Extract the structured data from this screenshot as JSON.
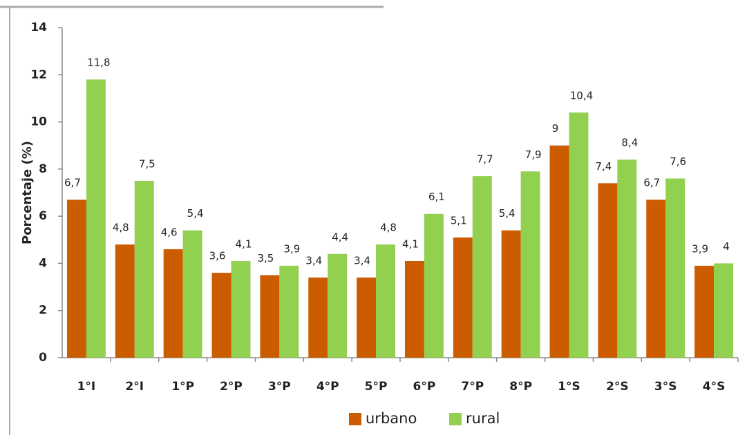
{
  "chart_data": {
    "type": "bar",
    "y_label": "Porcentaje (%)",
    "categories": [
      "1°I",
      "2°I",
      "1°P",
      "2°P",
      "3°P",
      "4°P",
      "5°P",
      "6°P",
      "7°P",
      "8°P",
      "1°S",
      "2°S",
      "3°S",
      "4°S"
    ],
    "series": [
      {
        "name": "urbano",
        "color": "#cc5c00",
        "values": [
          6.7,
          4.8,
          4.6,
          3.6,
          3.5,
          3.4,
          3.4,
          4.1,
          5.1,
          5.4,
          9,
          7.4,
          6.7,
          3.9
        ],
        "value_labels": [
          "6,7",
          "4,8",
          "4,6",
          "3,6",
          "3,5",
          "3,4",
          "3,4",
          "4,1",
          "5,1",
          "5,4",
          "9",
          "7,4",
          "6,7",
          "3,9"
        ]
      },
      {
        "name": "rural",
        "color": "#92d050",
        "values": [
          11.8,
          7.5,
          5.4,
          4.1,
          3.9,
          4.4,
          4.8,
          6.1,
          7.7,
          7.9,
          10.4,
          8.4,
          7.6,
          4
        ],
        "value_labels": [
          "11,8",
          "7,5",
          "5,4",
          "4,1",
          "3,9",
          "4,4",
          "4,8",
          "6,1",
          "7,7",
          "7,9",
          "10,4",
          "8,4",
          "7,6",
          "4"
        ]
      }
    ],
    "ylim": [
      0,
      14
    ],
    "yticks": [
      0,
      2,
      4,
      6,
      8,
      10,
      12,
      14
    ],
    "grid": false,
    "legend": "bottom"
  }
}
